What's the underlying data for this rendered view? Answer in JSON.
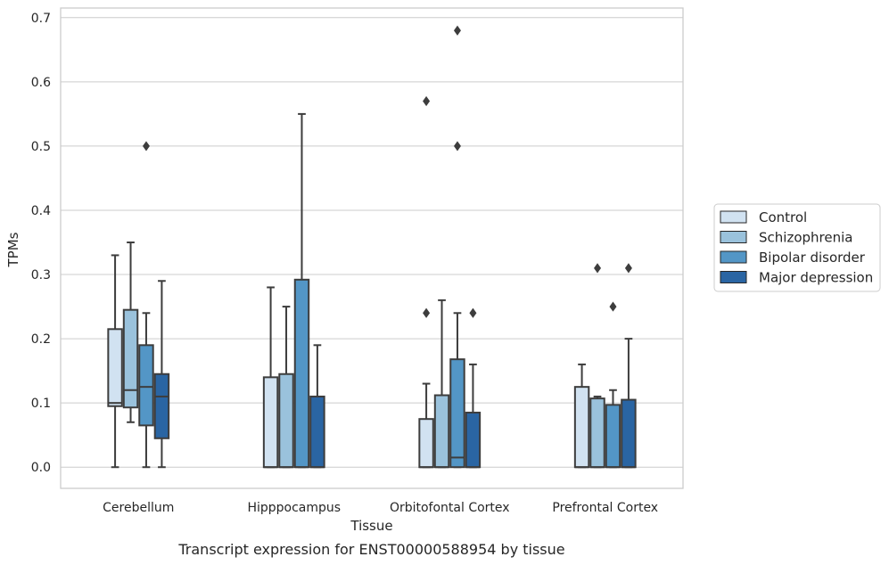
{
  "chart_data": {
    "type": "box",
    "caption": "Transcript expression for ENST00000588954 by tissue",
    "xlabel": "Tissue",
    "ylabel": "TPMs",
    "ylim": [
      -0.033,
      0.715
    ],
    "yticks": [
      "0.0",
      "0.1",
      "0.2",
      "0.3",
      "0.4",
      "0.5",
      "0.6",
      "0.7"
    ],
    "categories": [
      "Cerebellum",
      "Hipppocampus",
      "Orbitofontal Cortex",
      "Prefrontal Cortex"
    ],
    "grid": "horizontal",
    "legend_position": "right",
    "series": [
      {
        "name": "Control",
        "color": "#d1e2f1",
        "boxes": [
          {
            "whisker_low": 0.0,
            "q1": 0.095,
            "median": 0.1,
            "q3": 0.215,
            "whisker_high": 0.33,
            "outliers": []
          },
          {
            "whisker_low": 0.0,
            "q1": 0.0,
            "median": 0.0,
            "q3": 0.14,
            "whisker_high": 0.28,
            "outliers": []
          },
          {
            "whisker_low": 0.0,
            "q1": 0.0,
            "median": 0.0,
            "q3": 0.075,
            "whisker_high": 0.13,
            "outliers": [
              0.24,
              0.57
            ]
          },
          {
            "whisker_low": 0.0,
            "q1": 0.0,
            "median": 0.0,
            "q3": 0.125,
            "whisker_high": 0.16,
            "outliers": []
          }
        ]
      },
      {
        "name": "Schizophrenia",
        "color": "#9ac2dc",
        "boxes": [
          {
            "whisker_low": 0.07,
            "q1": 0.093,
            "median": 0.12,
            "q3": 0.245,
            "whisker_high": 0.35,
            "outliers": []
          },
          {
            "whisker_low": 0.0,
            "q1": 0.0,
            "median": 0.0,
            "q3": 0.145,
            "whisker_high": 0.25,
            "outliers": []
          },
          {
            "whisker_low": 0.0,
            "q1": 0.0,
            "median": 0.0,
            "q3": 0.112,
            "whisker_high": 0.26,
            "outliers": []
          },
          {
            "whisker_low": 0.0,
            "q1": 0.0,
            "median": 0.0,
            "q3": 0.107,
            "whisker_high": 0.11,
            "outliers": []
          }
        ]
      },
      {
        "name": "Bipolar disorder",
        "color": "#5396c6",
        "boxes": [
          {
            "whisker_low": 0.0,
            "q1": 0.065,
            "median": 0.125,
            "q3": 0.19,
            "whisker_high": 0.24,
            "outliers": [
              0.5
            ]
          },
          {
            "whisker_low": 0.0,
            "q1": 0.0,
            "median": 0.0,
            "q3": 0.292,
            "whisker_high": 0.55,
            "outliers": []
          },
          {
            "whisker_low": 0.0,
            "q1": 0.0,
            "median": 0.015,
            "q3": 0.168,
            "whisker_high": 0.24,
            "outliers": [
              0.5,
              0.68
            ]
          },
          {
            "whisker_low": 0.0,
            "q1": 0.0,
            "median": 0.0,
            "q3": 0.097,
            "whisker_high": 0.12,
            "outliers": [
              0.25
            ]
          }
        ]
      },
      {
        "name": "Major depression",
        "color": "#2a65a3",
        "boxes": [
          {
            "whisker_low": 0.0,
            "q1": 0.045,
            "median": 0.11,
            "q3": 0.145,
            "whisker_high": 0.29,
            "outliers": []
          },
          {
            "whisker_low": 0.0,
            "q1": 0.0,
            "median": 0.0,
            "q3": 0.11,
            "whisker_high": 0.19,
            "outliers": []
          },
          {
            "whisker_low": 0.0,
            "q1": 0.0,
            "median": 0.0,
            "q3": 0.085,
            "whisker_high": 0.16,
            "outliers": [
              0.24
            ]
          },
          {
            "whisker_low": 0.0,
            "q1": 0.0,
            "median": 0.0,
            "q3": 0.105,
            "whisker_high": 0.2,
            "outliers": [
              0.31
            ]
          }
        ]
      }
    ],
    "extra_outliers": [
      {
        "category": 3,
        "series": 1,
        "value": 0.31
      }
    ]
  }
}
